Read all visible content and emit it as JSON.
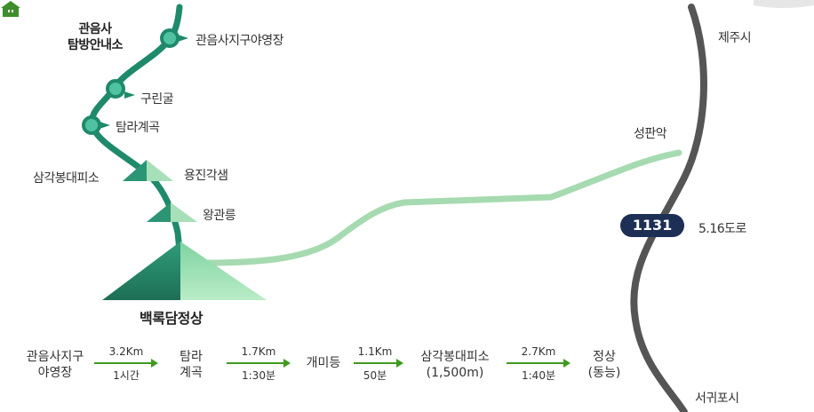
{
  "map": {
    "places": {
      "gwaneumsa_temple": "관음사",
      "visitor_center": "탐방안내소",
      "campground": "관음사지구야영장",
      "gurin_cave": "구린굴",
      "tamna_valley": "탐라계곡",
      "samgak_shelter": "삼각봉대피소",
      "yongjin_gaksaem": "용진각샘",
      "wanggwan_reung": "왕관릉",
      "summit": "백록담정상",
      "seongpanak": "성판악",
      "jeju_city": "제주시",
      "seogwipo_city": "서귀포시",
      "road_name": "5.16도로"
    },
    "road_badge": "1131",
    "colors": {
      "trail": "#1f8a6b",
      "side_trail": "#9fd4a7",
      "road": "#555555",
      "badge": "#1d2f55",
      "arrow": "#3f9a1f"
    }
  },
  "course": {
    "steps": [
      {
        "line1": "관음사지구",
        "line2": "야영장"
      },
      {
        "line1": "탐라",
        "line2": "계곡"
      },
      {
        "line1": "개미등",
        "line2": ""
      },
      {
        "line1": "삼각봉대피소",
        "line2": "(1,500m)"
      },
      {
        "line1": "정상",
        "line2": "(동능)"
      }
    ],
    "legs": [
      {
        "distance": "3.2Km",
        "time": "1시간"
      },
      {
        "distance": "1.7Km",
        "time": "1:30분"
      },
      {
        "distance": "1.1Km",
        "time": "50분"
      },
      {
        "distance": "2.7Km",
        "time": "1:40분"
      }
    ]
  }
}
